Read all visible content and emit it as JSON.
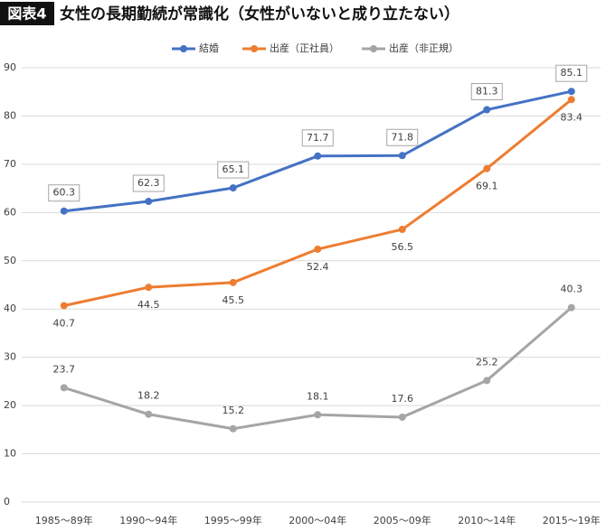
{
  "chart_data": {
    "type": "line",
    "figure_label": "図表4",
    "title": "女性の長期勤続が常識化（女性がいないと成り立たない）",
    "categories": [
      "1985〜89年",
      "1990〜94年",
      "1995〜99年",
      "2000〜04年",
      "2005〜09年",
      "2010〜14年",
      "2015〜19年"
    ],
    "series": [
      {
        "name": "結婚",
        "color": "#4472c4",
        "values": [
          60.3,
          62.3,
          65.1,
          71.7,
          71.8,
          81.3,
          85.1
        ]
      },
      {
        "name": "出産（正社員）",
        "color": "#ed7d31",
        "values": [
          40.7,
          44.5,
          45.5,
          52.4,
          56.5,
          69.1,
          83.4
        ]
      },
      {
        "name": "出産（非正規）",
        "color": "#a5a5a5",
        "values": [
          23.7,
          18.2,
          15.2,
          18.1,
          17.6,
          25.2,
          40.3
        ]
      }
    ],
    "ylim": [
      0,
      90
    ],
    "yticks": [
      0,
      10,
      20,
      30,
      40,
      50,
      60,
      70,
      80,
      90
    ],
    "grid": true,
    "legend": "top"
  }
}
